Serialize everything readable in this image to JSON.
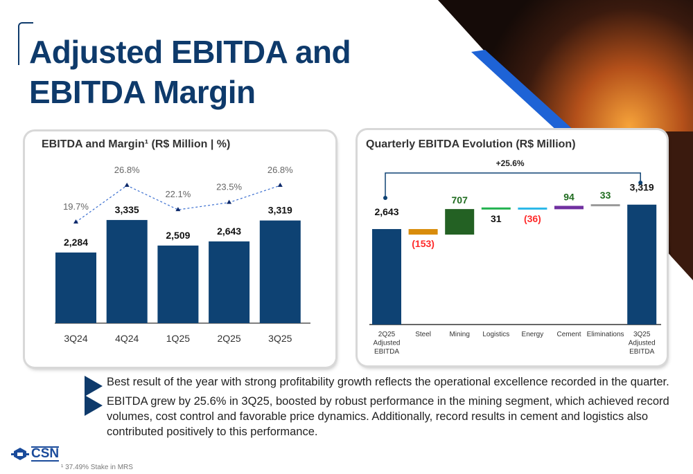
{
  "title": "Adjusted EBITDA and EBITDA Margin",
  "title_lines": [
    "Adjusted EBITDA and",
    "EBITDA Margin"
  ],
  "colors": {
    "brand": "#0e3a6b",
    "bar": "#0e4273",
    "negative": "#ff2a2a",
    "positive": "#1e6b1e",
    "steel": "#d98c0b",
    "mining": "#236123",
    "logistics": "#21b24f",
    "energy": "#2bb8e8",
    "cement": "#7030a0",
    "eliminations": "#999999"
  },
  "chart_data": [
    {
      "type": "bar",
      "title": "EBITDA and Margin¹ (R$ Million | %)",
      "categories": [
        "3Q24",
        "4Q24",
        "1Q25",
        "2Q25",
        "3Q25"
      ],
      "series": [
        {
          "type": "bar",
          "values": [
            2284,
            3335,
            2509,
            2643,
            3319
          ],
          "labels": [
            "2,284",
            "3,335",
            "2,509",
            "2,643",
            "3,319"
          ]
        },
        {
          "type": "line",
          "style": "dotted",
          "marker": "triangle",
          "values": [
            19.7,
            26.8,
            22.1,
            23.5,
            26.8
          ],
          "labels": [
            "19.7%",
            "26.8%",
            "22.1%",
            "23.5%",
            "26.8%"
          ]
        }
      ],
      "grid": false
    },
    {
      "type": "waterfall",
      "title": "Quarterly EBITDA Evolution (R$ Million)",
      "annotation": "+25.6%",
      "categories": [
        "2Q25|Adjusted|EBITDA",
        "Steel",
        "Mining",
        "Logistics",
        "Energy",
        "Cement",
        "Eliminations",
        "3Q25|Adjusted|EBITDA"
      ],
      "values": [
        2643,
        -153,
        707,
        31,
        -36,
        94,
        33,
        3319
      ],
      "labels": [
        "2,643",
        "(153)",
        "707",
        "31",
        "(36)",
        "94",
        "33",
        "3,319"
      ],
      "kinds": [
        "total",
        "delta",
        "delta",
        "delta",
        "delta",
        "delta",
        "delta",
        "total"
      ],
      "bar_colors": [
        "#0e4273",
        "#d98c0b",
        "#236123",
        "#21b24f",
        "#2bb8e8",
        "#7030a0",
        "#999999",
        "#0e4273"
      ],
      "label_colors": [
        "#111111",
        "#ff2a2a",
        "#1e6b1e",
        "#111111",
        "#ff2a2a",
        "#1e6b1e",
        "#1e6b1e",
        "#111111"
      ],
      "grid": false
    }
  ],
  "bullets": [
    "Best result of the year with strong profitability growth reflects the operational excellence recorded in the quarter.",
    "EBITDA grew by 25.6% in 3Q25, boosted by robust performance in the mining segment, which achieved record volumes, cost control and favorable price dynamics. Additionally, record results in cement and logistics also contributed positively to this performance."
  ],
  "logo": "CSN",
  "footnote": "¹ 37.49% Stake in MRS"
}
